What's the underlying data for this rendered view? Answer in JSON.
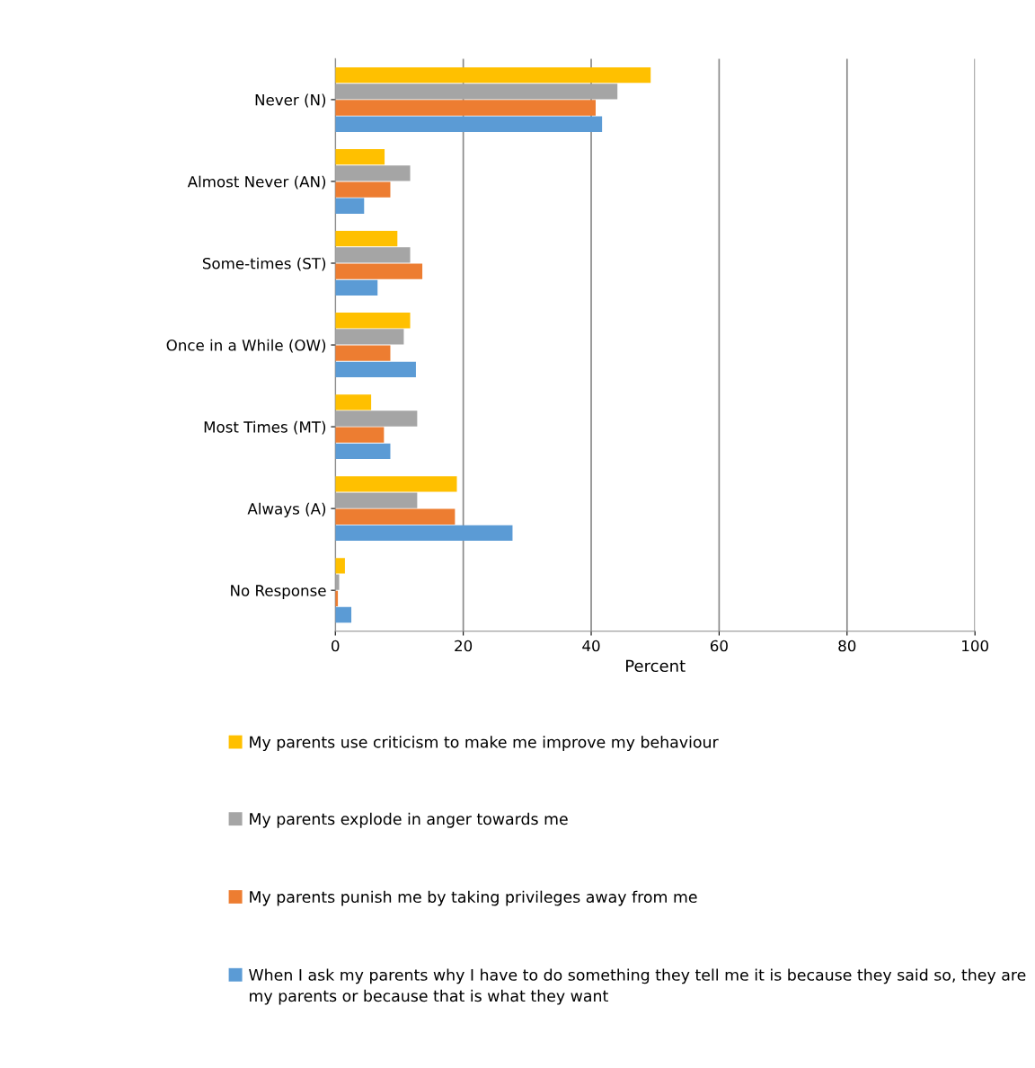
{
  "chart_data": {
    "type": "bar",
    "orientation": "horizontal",
    "xlabel": "Percent",
    "categories": [
      "Never (N)",
      "Almost Never (AN)",
      "Some-times (ST)",
      "Once in a While (OW)",
      "Most Times (MT)",
      "Always (A)",
      "No Response"
    ],
    "series": [
      {
        "name": "My parents use criticism to make me improve my behaviour",
        "color": "#ffc000",
        "values": [
          49.3,
          7.7,
          9.7,
          11.7,
          5.6,
          19.0,
          1.5
        ]
      },
      {
        "name": "My parents explode in anger towards me",
        "color": "#a5a5a5",
        "values": [
          44.1,
          11.7,
          11.7,
          10.7,
          12.8,
          12.8,
          0.6
        ]
      },
      {
        "name": "My parents punish me by taking privileges away from me",
        "color": "#ed7d31",
        "values": [
          40.7,
          8.6,
          13.6,
          8.6,
          7.6,
          18.7,
          0.4
        ]
      },
      {
        "name": "When I ask my parents why I have to do something they tell me it is because they said so, they are my parents or because that is what they want",
        "color": "#5b9bd5",
        "values": [
          41.7,
          4.5,
          6.6,
          12.6,
          8.6,
          27.7,
          2.5
        ]
      }
    ],
    "xlim": [
      0,
      100
    ],
    "xticks": [
      0,
      20,
      40,
      60,
      80,
      100
    ],
    "grid": "x",
    "legend": "bottom"
  }
}
